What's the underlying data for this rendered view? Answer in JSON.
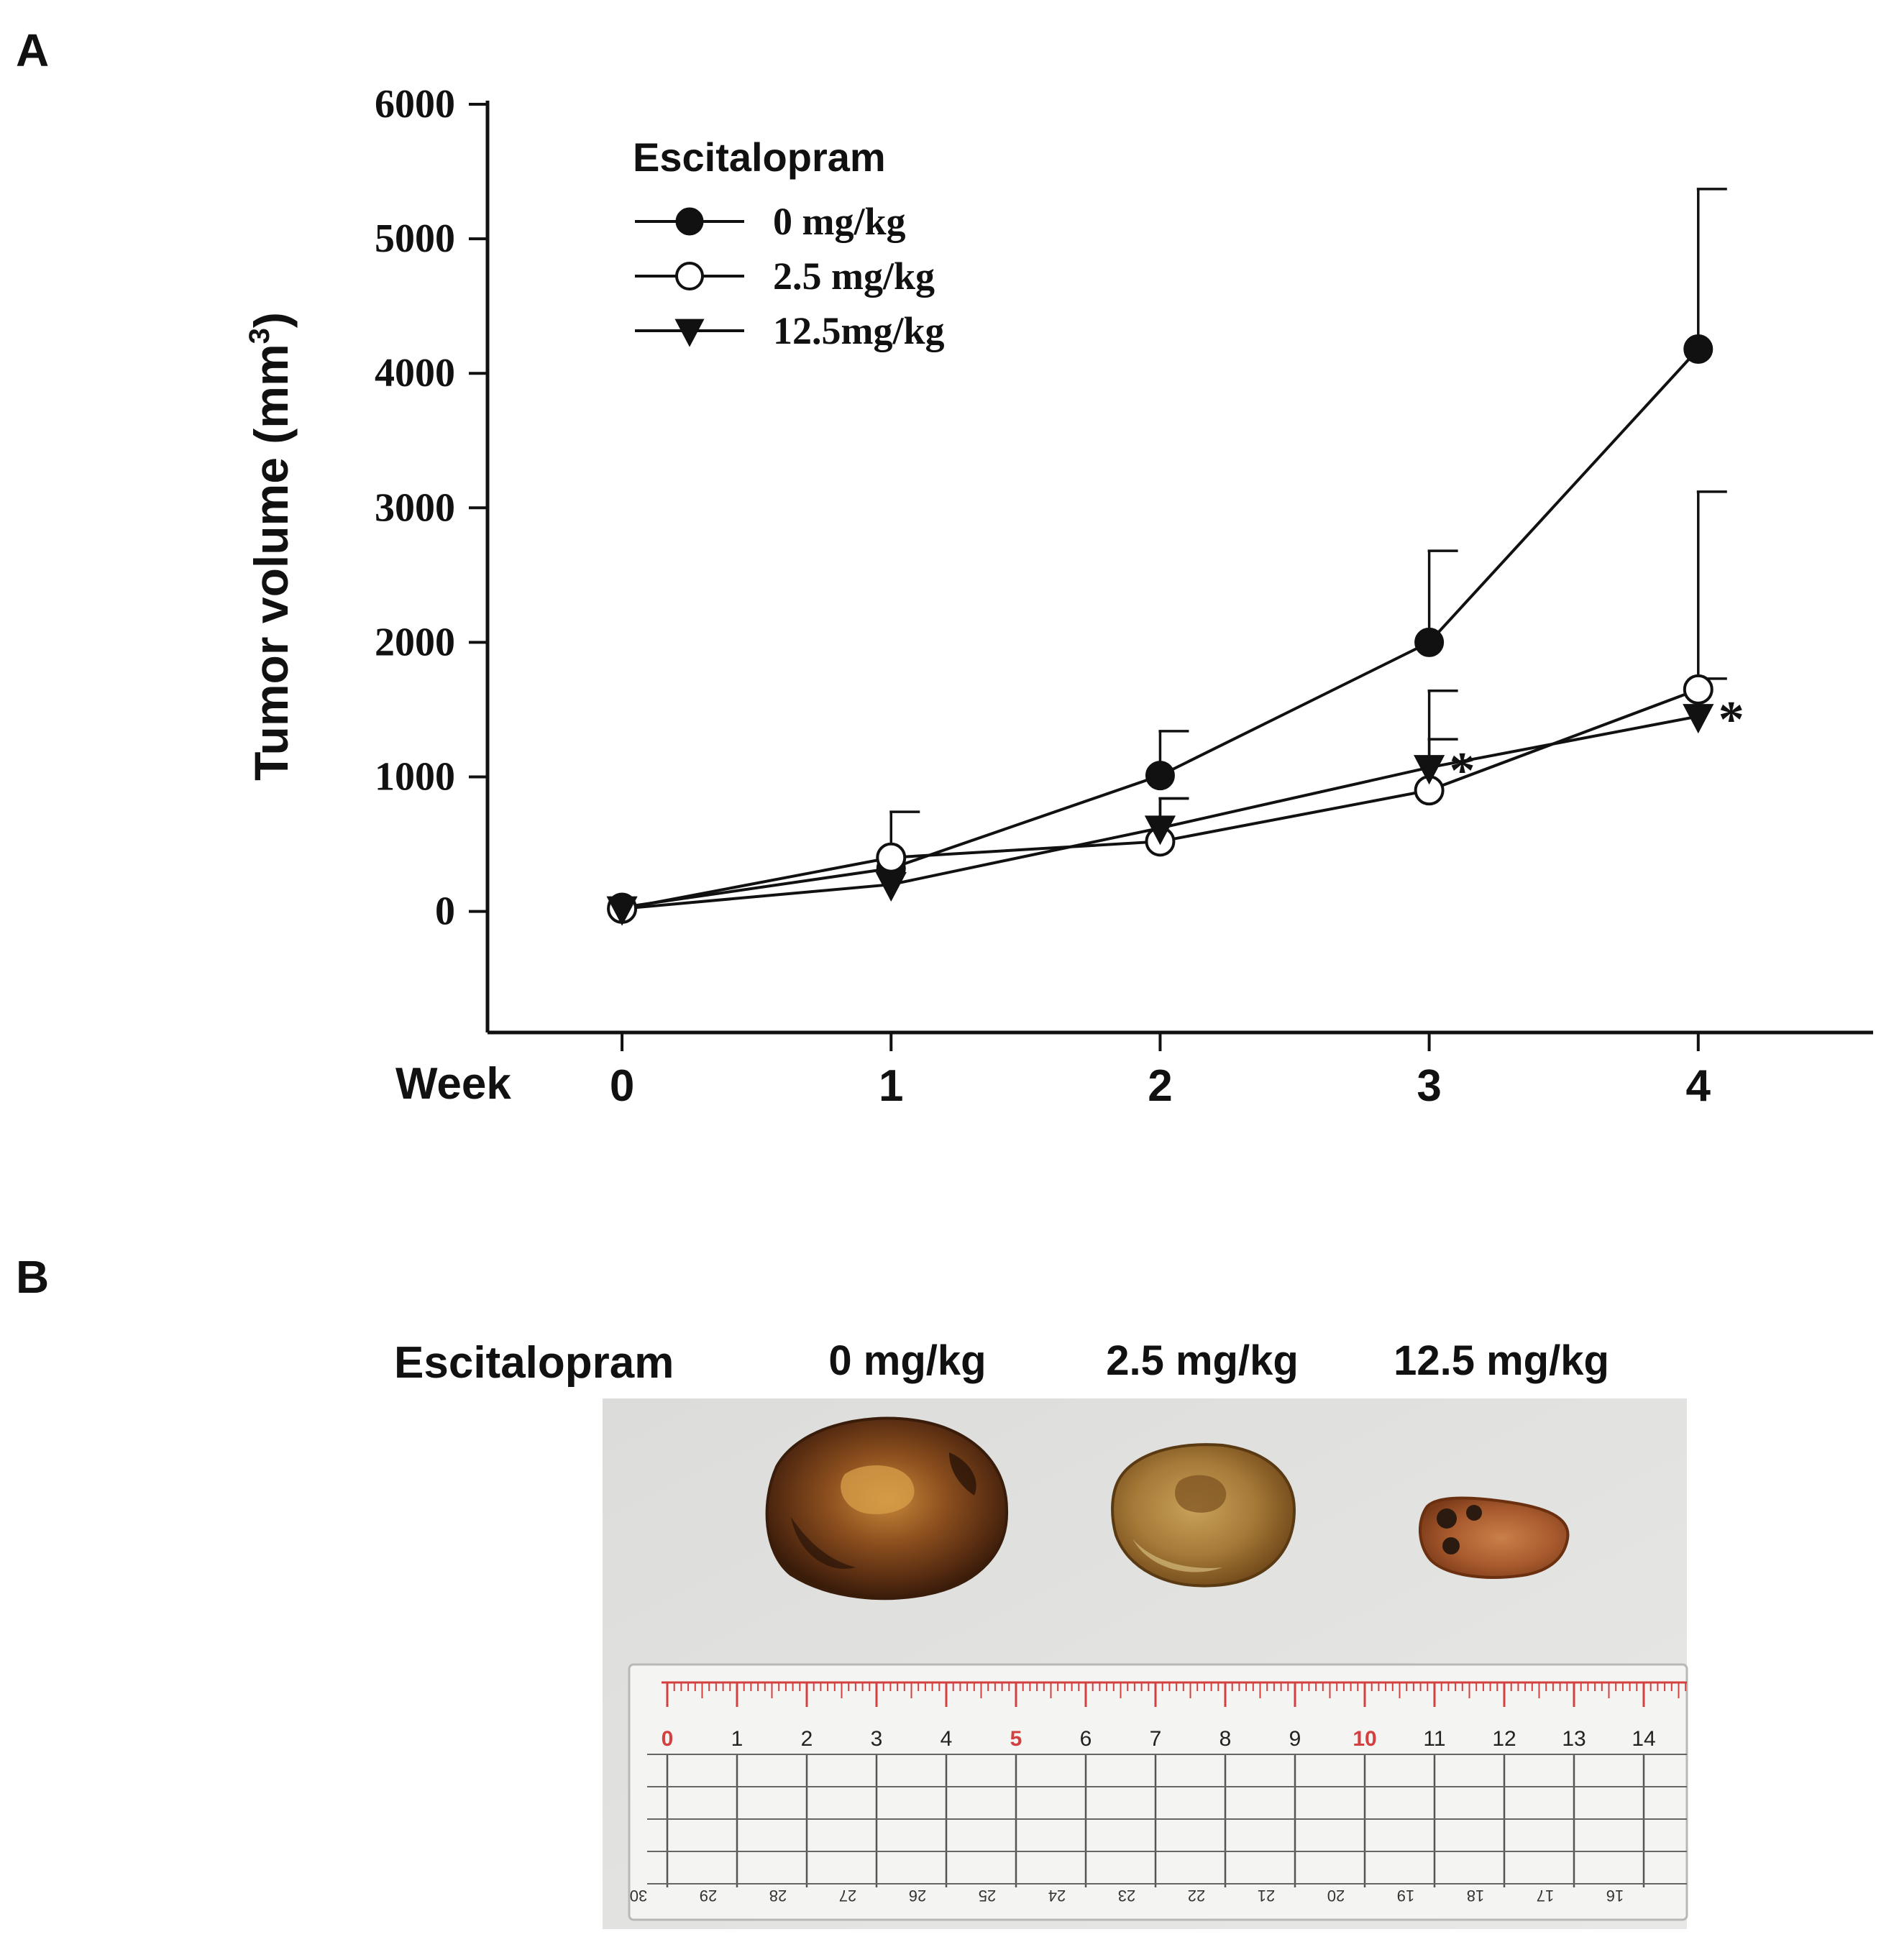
{
  "panels": {
    "a_label": "A",
    "b_label": "B"
  },
  "chart_data": {
    "type": "line",
    "title": "",
    "xlabel": "Week",
    "ylabel": "Tumor volume (mm",
    "ylabel_sup": "3",
    "ylabel_close": ")",
    "x": [
      0,
      1,
      2,
      3,
      4
    ],
    "x_tick_labels": [
      "0",
      "1",
      "2",
      "3",
      "4"
    ],
    "y_ticks": [
      0,
      1000,
      2000,
      3000,
      4000,
      5000,
      6000
    ],
    "y_tick_labels": [
      "0",
      "1000",
      "2000",
      "3000",
      "4000",
      "5000",
      "6000"
    ],
    "ylim": [
      -900,
      6000
    ],
    "xlim": [
      -0.5,
      4.65
    ],
    "grid": false,
    "legend": {
      "title": "Escitalopram",
      "placement": "top-left"
    },
    "series": [
      {
        "name": "0 mg/kg",
        "marker": "filled-circle",
        "values": [
          30,
          320,
          1010,
          2000,
          4180
        ],
        "error_upper": [
          0,
          420,
          330,
          680,
          1190
        ]
      },
      {
        "name": "2.5 mg/kg",
        "marker": "open-circle",
        "values": [
          20,
          400,
          520,
          900,
          1650
        ],
        "error_upper": [
          0,
          0,
          320,
          380,
          1470
        ]
      },
      {
        "name": "12.5mg/kg",
        "marker": "filled-triangle-down",
        "values": [
          20,
          200,
          620,
          1070,
          1450
        ],
        "error_upper": [
          0,
          0,
          220,
          570,
          280
        ]
      }
    ],
    "annotations": [
      {
        "text": "*",
        "x": 3,
        "series": "12.5mg/kg"
      },
      {
        "text": "*",
        "x": 4,
        "series": "12.5mg/kg"
      }
    ]
  },
  "photo": {
    "header_label": "Escitalopram",
    "group_labels": [
      "0 mg/kg",
      "2.5 mg/kg",
      "12.5 mg/kg"
    ],
    "ruler_top_numbers": [
      "0",
      "1",
      "2",
      "3",
      "4",
      "5",
      "6",
      "7",
      "8",
      "9",
      "10",
      "11",
      "12",
      "13",
      "14"
    ],
    "ruler_bottom_numbers": [
      "30",
      "29",
      "28",
      "27",
      "26",
      "25",
      "24",
      "23",
      "22",
      "21",
      "20",
      "19",
      "18",
      "17",
      "16"
    ],
    "colors": {
      "background": "#e4e4e2",
      "ruler_red": "#d24040",
      "tumor_dark": "#5a2e12",
      "tumor_mid": "#9a6a30",
      "tumor_light": "#c9b064"
    }
  }
}
